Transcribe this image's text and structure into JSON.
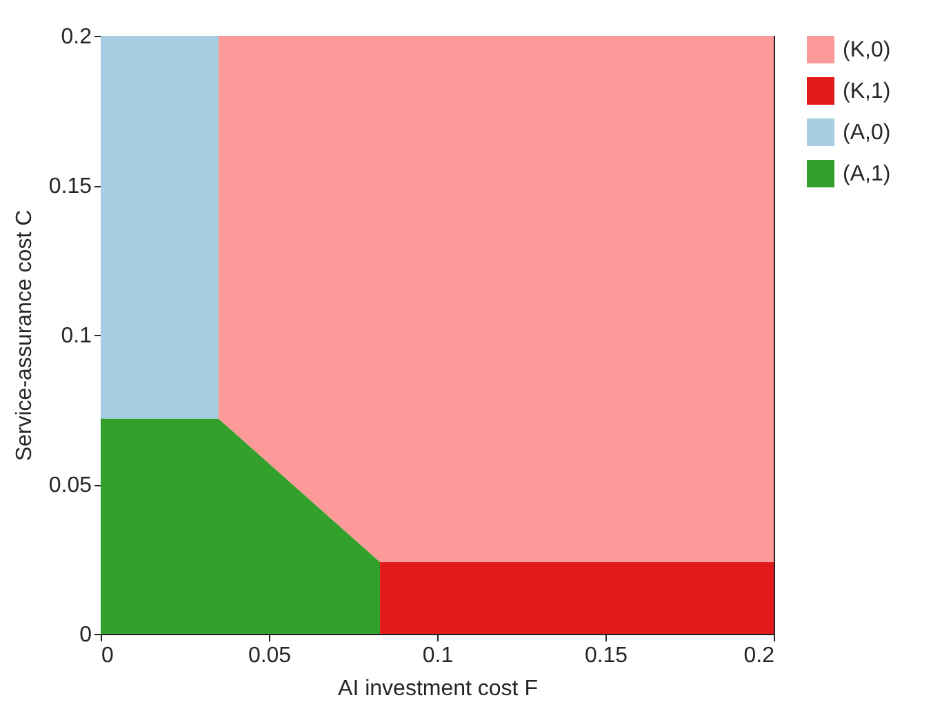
{
  "chart_data": {
    "type": "area",
    "stacked": true,
    "xlabel": "AI investment cost F",
    "ylabel": "Service-assurance cost C",
    "x": [
      0,
      0.035,
      0.035,
      0.083,
      0.083,
      0.2
    ],
    "series": [
      {
        "name": "(A,1)",
        "color": "#33a02c",
        "values": [
          0.072,
          0.072,
          0.072,
          0.024,
          0,
          null
        ]
      },
      {
        "name": "(A,0)",
        "color": "#a6cee3",
        "values": [
          0.128,
          0.128,
          0,
          null,
          null,
          null
        ]
      },
      {
        "name": "(K,1)",
        "color": "#e31a1c",
        "values": [
          null,
          null,
          null,
          0,
          0.024,
          0.024
        ]
      },
      {
        "name": "(K,0)",
        "color": "#fb9a99",
        "values": [
          null,
          0,
          0.128,
          0.176,
          0.176,
          0.176
        ]
      }
    ],
    "xlim": [
      0,
      0.2
    ],
    "ylim": [
      0,
      0.2
    ],
    "xticks": [
      0,
      0.05,
      0.1,
      0.15,
      0.2
    ],
    "yticks": [
      0,
      0.05,
      0.1,
      0.15,
      0.2
    ],
    "grid": true,
    "legend": "right"
  }
}
